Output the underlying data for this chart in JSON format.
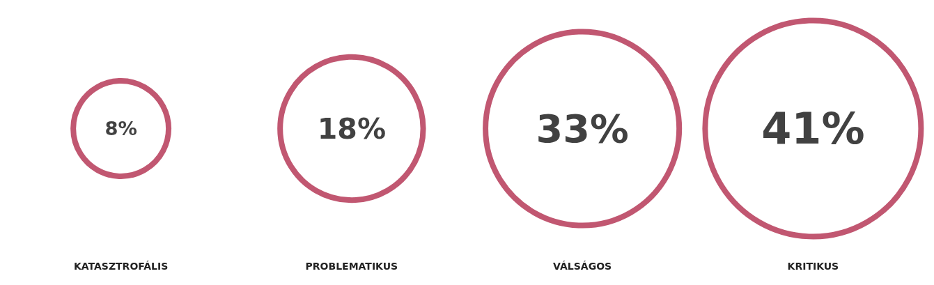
{
  "chart_data": {
    "type": "other",
    "categories": [
      "KATASZTROFÁLIS",
      "PROBLEMATIKUS",
      "VÁLSÁGOS",
      "KRITIKUS"
    ],
    "values": [
      8,
      18,
      33,
      41
    ],
    "value_labels": [
      "8%",
      "18%",
      "33%",
      "41%"
    ],
    "color": "#b22d4e"
  }
}
